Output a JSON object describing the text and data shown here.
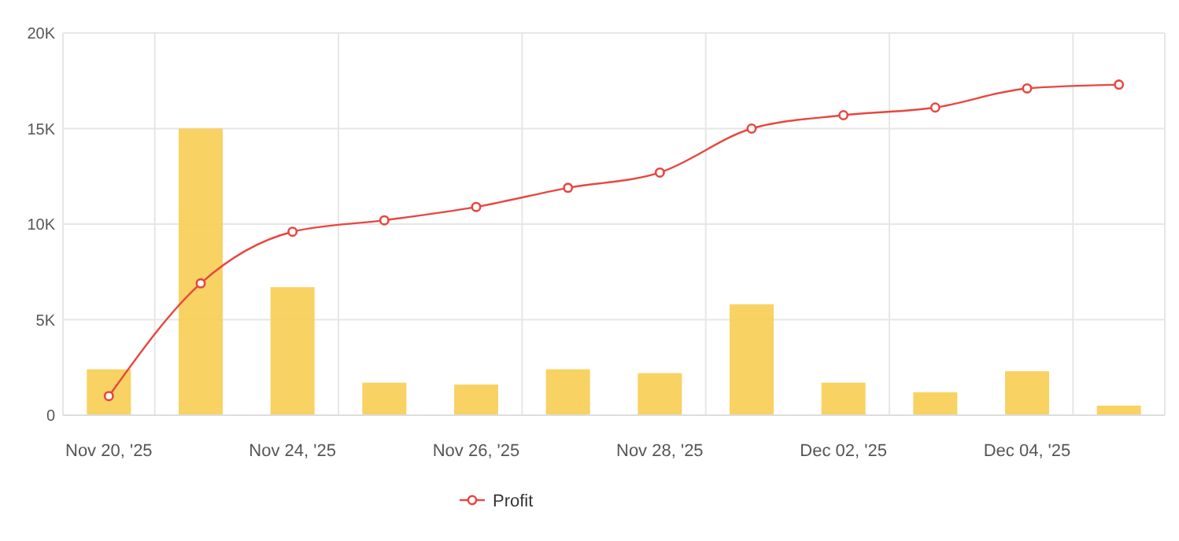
{
  "chart_data": {
    "type": "bar",
    "categories": [
      "Nov 20, '25",
      null,
      "Nov 24, '25",
      null,
      "Nov 26, '25",
      null,
      "Nov 28, '25",
      null,
      "Dec 02, '25",
      null,
      "Dec 04, '25",
      null
    ],
    "series": [
      {
        "color": "#f7ce55",
        "values": [
          2.4,
          15,
          6.7,
          1.7,
          1.6,
          2.4,
          2.2,
          5.8,
          1.7,
          1.2,
          2.3,
          0.5
        ]
      },
      {
        "type": "line",
        "name": "Profit",
        "color": "#e8463f",
        "marker": "circle",
        "values": [
          1.0,
          6.9,
          9.6,
          10.2,
          10.9,
          11.9,
          12.7,
          15.0,
          15.7,
          16.1,
          17.1,
          17.3
        ]
      }
    ],
    "ylim": [
      0,
      20
    ],
    "yticks": [
      {
        "value": 0,
        "label": "0"
      },
      {
        "value": 5,
        "label": "5K"
      },
      {
        "value": 10,
        "label": "10K"
      },
      {
        "value": 15,
        "label": "15K"
      },
      {
        "value": 20,
        "label": "20K"
      }
    ],
    "grid": true,
    "legend": "bottom"
  }
}
